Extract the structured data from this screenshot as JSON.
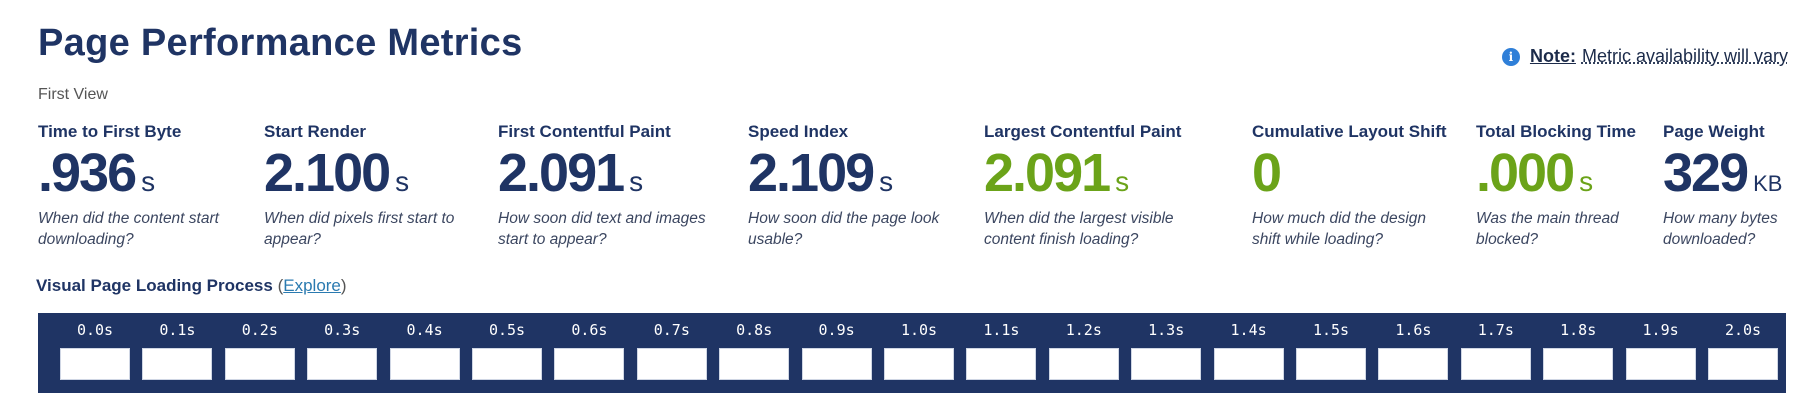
{
  "header": {
    "title": "Page Performance Metrics",
    "note_label": "Note:",
    "note_text": "Metric availability will vary",
    "info_icon": "info-icon",
    "subtitle": "First View"
  },
  "metrics": [
    {
      "label": "Time to First Byte",
      "value": ".936",
      "unit": "s",
      "desc": "When did the content start downloading?",
      "color": "#1f3464"
    },
    {
      "label": "Start Render",
      "value": "2.100",
      "unit": "s",
      "desc": "When did pixels first start to appear?",
      "color": "#1f3464"
    },
    {
      "label": "First Contentful Paint",
      "value": "2.091",
      "unit": "s",
      "desc": "How soon did text and images start to appear?",
      "color": "#1f3464"
    },
    {
      "label": "Speed Index",
      "value": "2.109",
      "unit": "s",
      "desc": "How soon did the page look usable?",
      "color": "#1f3464"
    },
    {
      "label": "Largest Contentful Paint",
      "value": "2.091",
      "unit": "s",
      "desc": "When did the largest visible content finish loading?",
      "color": "#6ba319"
    },
    {
      "label": "Cumulative Layout Shift",
      "value": "0",
      "unit": "",
      "desc": "How much did the design shift while loading?",
      "color": "#6ba319"
    },
    {
      "label": "Total Blocking Time",
      "value": ".000",
      "unit": "s",
      "desc": "Was the main thread blocked?",
      "color": "#6ba319"
    },
    {
      "label": "Page Weight",
      "value": "329",
      "unit": "KB",
      "desc": "How many bytes downloaded?",
      "color": "#1f3464"
    }
  ],
  "visual": {
    "label": "Visual Page Loading Process",
    "open_paren": "(",
    "explore": "Explore",
    "close_paren": ")",
    "frames": [
      "0.0s",
      "0.1s",
      "0.2s",
      "0.3s",
      "0.4s",
      "0.5s",
      "0.6s",
      "0.7s",
      "0.8s",
      "0.9s",
      "1.0s",
      "1.1s",
      "1.2s",
      "1.3s",
      "1.4s",
      "1.5s",
      "1.6s",
      "1.7s",
      "1.8s",
      "1.9s",
      "2.0s"
    ]
  }
}
